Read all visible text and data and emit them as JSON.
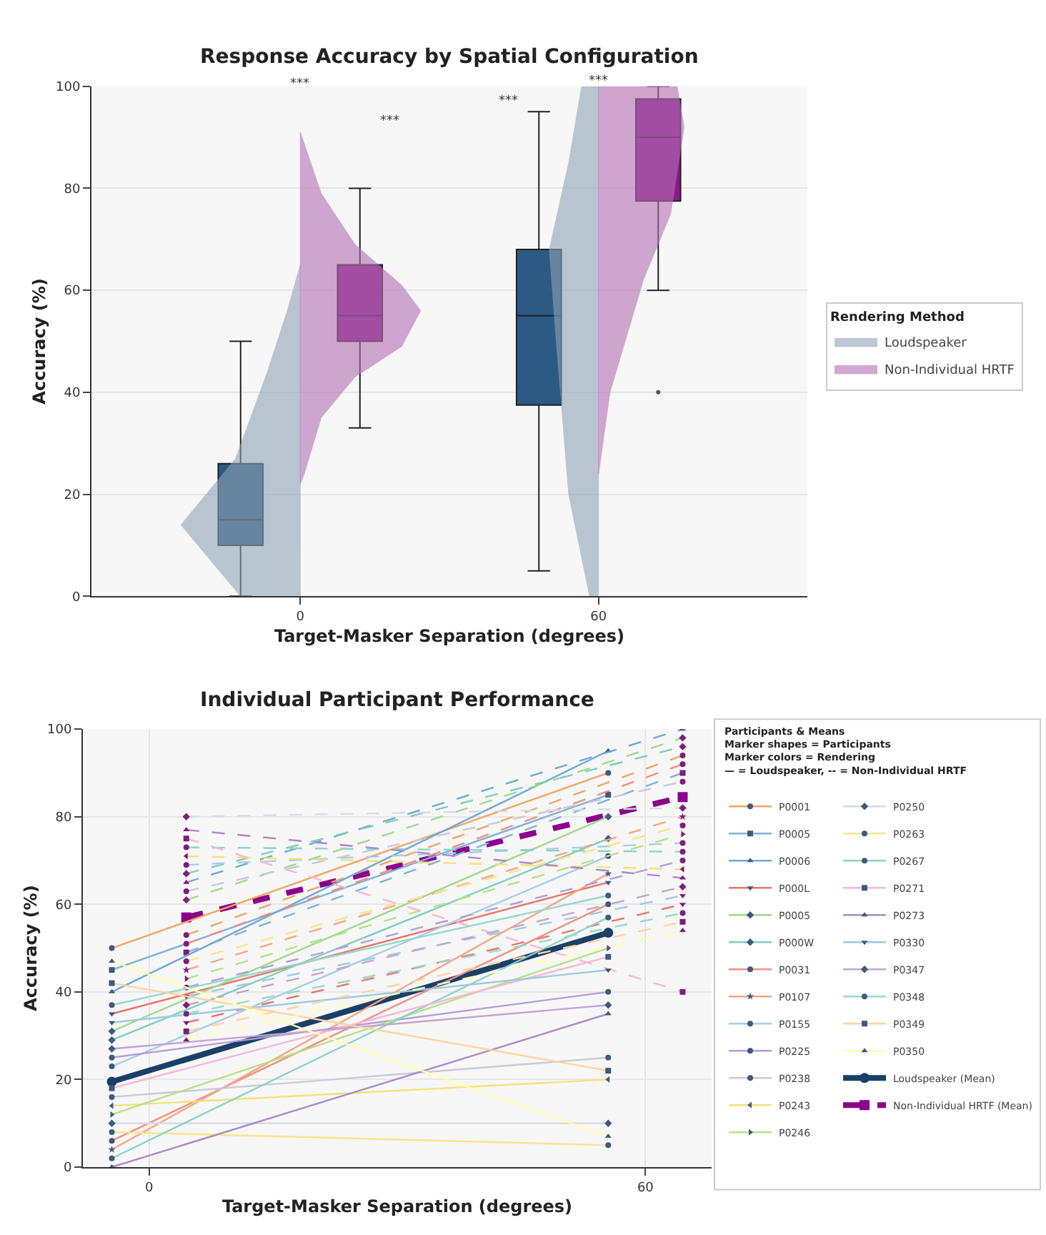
{
  "chart_data": [
    {
      "type": "box",
      "title": "Response Accuracy by Spatial Configuration",
      "xlabel": "Target-Masker Separation (degrees)",
      "ylabel": "Accuracy (%)",
      "legend_title": "Rendering Method",
      "legend": "right",
      "grid": "y",
      "xlim": [
        -42,
        102
      ],
      "xticks": [
        0,
        60
      ],
      "ylim": [
        0,
        100
      ],
      "yticks": [
        0,
        20,
        40,
        60,
        80,
        100
      ],
      "series": [
        {
          "type": "area",
          "name": "Loudspeaker",
          "color": "#8fa3b5",
          "x": [
            0,
            -12,
            -24,
            -13,
            -6.6,
            -2.6,
            0,
            0
          ],
          "values": [
            0,
            0,
            14,
            27,
            44,
            56,
            65,
            0
          ]
        },
        {
          "type": "area",
          "name": "Non-Individual HRTF",
          "color": "#b46fb4",
          "x": [
            0,
            4.2,
            11,
            20.4,
            24.2,
            20.4,
            11,
            4.2,
            0.8,
            0,
            0
          ],
          "values": [
            91,
            79,
            69,
            61,
            56,
            49,
            43,
            35,
            24,
            22,
            91
          ]
        },
        {
          "type": "area",
          "color": "#8fa3b5",
          "x": [
            60,
            58.2,
            54,
            51.5,
            50.1,
            54,
            56.6,
            60,
            60
          ],
          "values": [
            0,
            0,
            20,
            50,
            68,
            85,
            100,
            100,
            0
          ]
        },
        {
          "type": "area",
          "color": "#b46fb4",
          "x": [
            60,
            62.3,
            69,
            74.5,
            77.2,
            75.8,
            60,
            60
          ],
          "values": [
            24,
            40,
            62,
            75,
            92,
            100,
            100,
            24
          ]
        },
        {
          "type": "box",
          "color": "#2b5a85",
          "x": [
            -12,
            48
          ],
          "boxes": [
            {
              "low": 0,
              "q1": 10,
              "median": 15,
              "q3": 26,
              "high": 50
            },
            {
              "low": 5,
              "q1": 37.5,
              "median": 55,
              "q3": 68,
              "high": 95
            }
          ]
        },
        {
          "type": "box",
          "color": "#8b1a8b",
          "x": [
            12,
            72
          ],
          "boxes": [
            {
              "low": 33,
              "q1": 50,
              "median": 55,
              "q3": 65,
              "high": 80
            },
            {
              "low": 60,
              "q1": 77.5,
              "median": 90,
              "q3": 97.5,
              "high": 100,
              "outliers": [
                40
              ]
            }
          ]
        }
      ],
      "annotations": [
        "***",
        "***",
        "***",
        "***"
      ]
    },
    {
      "type": "line",
      "title": "Individual Participant Performance",
      "xlabel": "Target-Masker Separation (degrees)",
      "ylabel": "Accuracy (%)",
      "legend_title": "Participants & Means\nMarker shapes = Participants\nMarker colors = Rendering\n— = Loudspeaker, -- = Non-Individual HRTF",
      "legend": "right",
      "grid": true,
      "xlim": [
        -8,
        68
      ],
      "xticks": [
        0,
        60
      ],
      "ylim": [
        0,
        100
      ],
      "yticks": [
        0,
        20,
        40,
        60,
        80,
        100
      ],
      "series": [
        {
          "name": "P0001",
          "color": "#f4a460",
          "colors": [
            "#3d5a80",
            "#3d5a80"
          ],
          "marker": "circle",
          "line_style": "solid",
          "x": [
            -4.5,
            55.5
          ],
          "values": [
            50,
            90
          ]
        },
        {
          "color": "#f4a460",
          "colors": [
            "#7a1f7a",
            "#7a1f7a"
          ],
          "marker": "circle",
          "line_style": "dashed",
          "x": [
            4.5,
            64.5
          ],
          "values": [
            53,
            94
          ]
        },
        {
          "name": "P0005",
          "color": "#7fb2d9",
          "colors": [
            "#3d5a80",
            "#3d5a80"
          ],
          "marker": "square",
          "line_style": "solid",
          "x": [
            -4.5,
            55.5
          ],
          "values": [
            45,
            85
          ]
        },
        {
          "color": "#7fb2d9",
          "colors": [
            "#7a1f7a",
            "#7a1f7a"
          ],
          "marker": "square",
          "line_style": "dashed",
          "x": [
            4.5,
            64.5
          ],
          "values": [
            49,
            90
          ]
        },
        {
          "name": "P0006",
          "color": "#6fa8dc",
          "colors": [
            "#3d5a80",
            "#3d5a80"
          ],
          "marker": "triangle",
          "line_style": "solid",
          "x": [
            -4.5,
            55.5
          ],
          "values": [
            40,
            95
          ]
        },
        {
          "color": "#6fa8dc",
          "colors": [
            "#7a1f7a",
            "#7a1f7a"
          ],
          "marker": "triangle",
          "line_style": "dashed",
          "x": [
            4.5,
            64.5
          ],
          "values": [
            65,
            100
          ]
        },
        {
          "name": "P000L",
          "color": "#e8736c",
          "colors": [
            "#3d5a80",
            "#3d5a80"
          ],
          "marker": "triangle-down",
          "line_style": "solid",
          "x": [
            -4.5,
            55.5
          ],
          "values": [
            35,
            65
          ]
        },
        {
          "color": "#e8736c",
          "colors": [
            "#7a1f7a",
            "#7a1f7a"
          ],
          "marker": "triangle-down",
          "line_style": "dashed",
          "x": [
            4.5,
            64.5
          ],
          "values": [
            33,
            60
          ]
        },
        {
          "name": "P0005",
          "color": "#9fd98b",
          "colors": [
            "#3d5a80",
            "#3d5a80"
          ],
          "marker": "diamond",
          "line_style": "solid",
          "x": [
            -4.5,
            55.5
          ],
          "values": [
            31,
            80
          ]
        },
        {
          "color": "#9fd98b",
          "colors": [
            "#7a1f7a",
            "#7a1f7a"
          ],
          "marker": "diamond",
          "line_style": "dashed",
          "x": [
            4.5,
            64.5
          ],
          "values": [
            61,
            98
          ]
        },
        {
          "name": "P000W",
          "color": "#7fcdbb",
          "colors": [
            "#3d5a80",
            "#3d5a80"
          ],
          "marker": "diamond",
          "line_style": "solid",
          "x": [
            -4.5,
            55.5
          ],
          "values": [
            29,
            75
          ]
        },
        {
          "color": "#7fcdbb",
          "colors": [
            "#7a1f7a",
            "#7a1f7a"
          ],
          "marker": "diamond",
          "line_style": "dashed",
          "x": [
            4.5,
            64.5
          ],
          "values": [
            67,
            96
          ]
        },
        {
          "name": "P0031",
          "color": "#f28e7f",
          "colors": [
            "#3d5a80",
            "#3d5a80"
          ],
          "marker": "circle",
          "line_style": "solid",
          "x": [
            -4.5,
            55.5
          ],
          "values": [
            6,
            60
          ]
        },
        {
          "color": "#f28e7f",
          "colors": [
            "#7a1f7a",
            "#7a1f7a"
          ],
          "marker": "circle",
          "line_style": "dashed",
          "x": [
            4.5,
            64.5
          ],
          "values": [
            51,
            92
          ]
        },
        {
          "name": "P0107",
          "color": "#f6a582",
          "colors": [
            "#3d5a80",
            "#3d5a80"
          ],
          "marker": "star",
          "line_style": "solid",
          "x": [
            -4.5,
            55.5
          ],
          "values": [
            4,
            67
          ]
        },
        {
          "color": "#f6a582",
          "colors": [
            "#7a1f7a",
            "#7a1f7a"
          ],
          "marker": "star",
          "line_style": "dashed",
          "x": [
            4.5,
            64.5
          ],
          "values": [
            45,
            80
          ]
        },
        {
          "name": "P0155",
          "color": "#a6cee3",
          "colors": [
            "#3d5a80",
            "#3d5a80"
          ],
          "marker": "circle",
          "line_style": "solid",
          "x": [
            -4.5,
            55.5
          ],
          "values": [
            23,
            71
          ]
        },
        {
          "color": "#a6cee3",
          "colors": [
            "#7a1f7a",
            "#7a1f7a"
          ],
          "marker": "circle",
          "line_style": "dashed",
          "x": [
            4.5,
            64.5
          ],
          "values": [
            69,
            74
          ]
        },
        {
          "name": "P0225",
          "color": "#b39ddb",
          "colors": [
            "#3d5a80",
            "#3d5a80"
          ],
          "marker": "circle",
          "line_style": "solid",
          "x": [
            -4.5,
            55.5
          ],
          "values": [
            25,
            40
          ]
        },
        {
          "color": "#b39ddb",
          "colors": [
            "#7a1f7a",
            "#7a1f7a"
          ],
          "marker": "circle",
          "line_style": "dashed",
          "x": [
            4.5,
            64.5
          ],
          "values": [
            41,
            70
          ]
        },
        {
          "name": "P0238",
          "color": "#c9c9d9",
          "colors": [
            "#3d5a80",
            "#3d5a80"
          ],
          "marker": "circle",
          "line_style": "solid",
          "x": [
            -4.5,
            55.5
          ],
          "values": [
            16,
            25
          ]
        },
        {
          "color": "#c9c9d9",
          "colors": [
            "#7a1f7a",
            "#7a1f7a"
          ],
          "marker": "circle",
          "line_style": "dashed",
          "x": [
            4.5,
            64.5
          ],
          "values": [
            63,
            88
          ]
        },
        {
          "name": "P0243",
          "color": "#f3e27a",
          "colors": [
            "#3d5a80",
            "#3d5a80"
          ],
          "marker": "triangle-left",
          "line_style": "solid",
          "x": [
            -4.5,
            55.5
          ],
          "values": [
            14,
            20
          ]
        },
        {
          "color": "#f3e27a",
          "colors": [
            "#7a1f7a",
            "#7a1f7a"
          ],
          "marker": "triangle-left",
          "line_style": "dashed",
          "x": [
            4.5,
            64.5
          ],
          "values": [
            71,
            68
          ]
        },
        {
          "name": "P0246",
          "color": "#b8e186",
          "colors": [
            "#3d5a80",
            "#3d5a80"
          ],
          "marker": "triangle-right",
          "line_style": "solid",
          "x": [
            -4.5,
            55.5
          ],
          "values": [
            12,
            50
          ]
        },
        {
          "color": "#b8e186",
          "colors": [
            "#7a1f7a",
            "#7a1f7a"
          ],
          "marker": "triangle-right",
          "line_style": "dashed",
          "x": [
            4.5,
            64.5
          ],
          "values": [
            43,
            76
          ]
        },
        {
          "name": "P0250",
          "color": "#d9d9e6",
          "colors": [
            "#3d5a80",
            "#3d5a80"
          ],
          "marker": "diamond",
          "line_style": "solid",
          "x": [
            -4.5,
            55.5
          ],
          "values": [
            10,
            10
          ]
        },
        {
          "color": "#d9d9e6",
          "colors": [
            "#7a1f7a",
            "#7a1f7a"
          ],
          "marker": "diamond",
          "line_style": "dashed",
          "x": [
            4.5,
            64.5
          ],
          "values": [
            80,
            82
          ]
        },
        {
          "name": "P0263",
          "color": "#fbe38e",
          "colors": [
            "#3d5a80",
            "#3d5a80"
          ],
          "marker": "circle",
          "line_style": "solid",
          "x": [
            -4.5,
            55.5
          ],
          "values": [
            8,
            5
          ]
        },
        {
          "color": "#fbe38e",
          "colors": [
            "#7a1f7a",
            "#7a1f7a"
          ],
          "marker": "circle",
          "line_style": "dashed",
          "x": [
            4.5,
            64.5
          ],
          "values": [
            47,
            78
          ]
        },
        {
          "name": "P0267",
          "color": "#8dd3c7",
          "colors": [
            "#3d5a80",
            "#3d5a80"
          ],
          "marker": "circle",
          "line_style": "solid",
          "x": [
            -4.5,
            55.5
          ],
          "values": [
            2,
            57
          ]
        },
        {
          "color": "#8dd3c7",
          "colors": [
            "#7a1f7a",
            "#7a1f7a"
          ],
          "marker": "circle",
          "line_style": "dashed",
          "x": [
            4.5,
            64.5
          ],
          "values": [
            73,
            72
          ]
        },
        {
          "name": "P0271",
          "color": "#f7b6d2",
          "colors": [
            "#3d5a80",
            "#3d5a80"
          ],
          "marker": "square",
          "line_style": "solid",
          "x": [
            -4.5,
            55.5
          ],
          "values": [
            18,
            48
          ]
        },
        {
          "color": "#f7b6d2",
          "colors": [
            "#7a1f7a",
            "#7a1f7a"
          ],
          "marker": "square",
          "line_style": "dashed",
          "x": [
            4.5,
            64.5
          ],
          "values": [
            75,
            40
          ]
        },
        {
          "name": "P0273",
          "color": "#a88bc7",
          "colors": [
            "#3d5a80",
            "#3d5a80"
          ],
          "marker": "triangle",
          "line_style": "solid",
          "x": [
            -4.5,
            55.5
          ],
          "values": [
            0,
            35
          ]
        },
        {
          "color": "#a88bc7",
          "colors": [
            "#7a1f7a",
            "#7a1f7a"
          ],
          "marker": "triangle",
          "line_style": "dashed",
          "x": [
            4.5,
            64.5
          ],
          "values": [
            77,
            66
          ]
        },
        {
          "name": "P0330",
          "color": "#9ecae1",
          "colors": [
            "#3d5a80",
            "#3d5a80"
          ],
          "marker": "triangle-down",
          "line_style": "solid",
          "x": [
            -4.5,
            55.5
          ],
          "values": [
            33,
            45
          ]
        },
        {
          "color": "#9ecae1",
          "colors": [
            "#7a1f7a",
            "#7a1f7a"
          ],
          "marker": "triangle-down",
          "line_style": "dashed",
          "x": [
            4.5,
            64.5
          ],
          "values": [
            39,
            62
          ]
        },
        {
          "name": "P0347",
          "color": "#c2a5cf",
          "colors": [
            "#3d5a80",
            "#3d5a80"
          ],
          "marker": "diamond",
          "line_style": "solid",
          "x": [
            -4.5,
            55.5
          ],
          "values": [
            27,
            37
          ]
        },
        {
          "color": "#c2a5cf",
          "colors": [
            "#7a1f7a",
            "#7a1f7a"
          ],
          "marker": "diamond",
          "line_style": "dashed",
          "x": [
            4.5,
            64.5
          ],
          "values": [
            37,
            64
          ]
        },
        {
          "name": "P0348",
          "color": "#99d8c9",
          "colors": [
            "#3d5a80",
            "#3d5a80"
          ],
          "marker": "circle",
          "line_style": "solid",
          "x": [
            -4.5,
            55.5
          ],
          "values": [
            37,
            62
          ]
        },
        {
          "color": "#99d8c9",
          "colors": [
            "#7a1f7a",
            "#7a1f7a"
          ],
          "marker": "circle",
          "line_style": "dashed",
          "x": [
            4.5,
            64.5
          ],
          "values": [
            35,
            58
          ]
        },
        {
          "name": "P0349",
          "color": "#fdd49e",
          "colors": [
            "#3d5a80",
            "#3d5a80"
          ],
          "marker": "square",
          "line_style": "solid",
          "x": [
            -4.5,
            55.5
          ],
          "values": [
            42,
            22
          ]
        },
        {
          "color": "#fdd49e",
          "colors": [
            "#7a1f7a",
            "#7a1f7a"
          ],
          "marker": "square",
          "line_style": "dashed",
          "x": [
            4.5,
            64.5
          ],
          "values": [
            31,
            56
          ]
        },
        {
          "name": "P0350",
          "color": "#ffffb3",
          "colors": [
            "#3d5a80",
            "#3d5a80"
          ],
          "marker": "triangle",
          "line_style": "solid",
          "x": [
            -4.5,
            55.5
          ],
          "values": [
            47,
            7
          ]
        },
        {
          "color": "#ffffb3",
          "colors": [
            "#7a1f7a",
            "#7a1f7a"
          ],
          "marker": "triangle",
          "line_style": "dashed",
          "x": [
            4.5,
            64.5
          ],
          "values": [
            29,
            54
          ]
        },
        {
          "name": "Loudspeaker (Mean)",
          "color": "#1b3f66",
          "marker": "circle",
          "line_style": "solid",
          "x": [
            -4.5,
            55.5
          ],
          "values": [
            19.5,
            53.5
          ]
        },
        {
          "name": "Non-Individual HRTF (Mean)",
          "color": "#8b008b",
          "marker": "square",
          "line_style": "dashed",
          "x": [
            4.5,
            64.5
          ],
          "values": [
            57,
            84.5
          ]
        }
      ]
    }
  ]
}
